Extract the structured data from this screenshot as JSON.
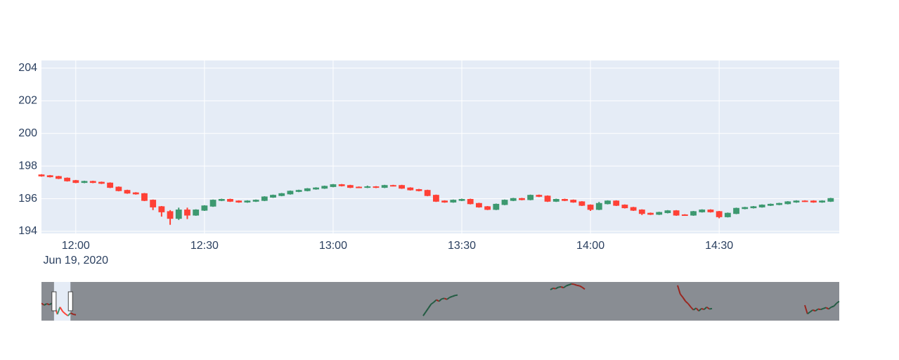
{
  "chart_data": {
    "type": "candlestick",
    "x": [
      "2020-06-19 11:52",
      "2020-06-19 11:54",
      "2020-06-19 11:56",
      "2020-06-19 11:58",
      "2020-06-19 12:00",
      "2020-06-19 12:02",
      "2020-06-19 12:04",
      "2020-06-19 12:06",
      "2020-06-19 12:08",
      "2020-06-19 12:10",
      "2020-06-19 12:12",
      "2020-06-19 12:14",
      "2020-06-19 12:16",
      "2020-06-19 12:18",
      "2020-06-19 12:20",
      "2020-06-19 12:22",
      "2020-06-19 12:24",
      "2020-06-19 12:26",
      "2020-06-19 12:28",
      "2020-06-19 12:30",
      "2020-06-19 12:32",
      "2020-06-19 12:34",
      "2020-06-19 12:36",
      "2020-06-19 12:38",
      "2020-06-19 12:40",
      "2020-06-19 12:42",
      "2020-06-19 12:44",
      "2020-06-19 12:46",
      "2020-06-19 12:48",
      "2020-06-19 12:50",
      "2020-06-19 12:52",
      "2020-06-19 12:54",
      "2020-06-19 12:56",
      "2020-06-19 12:58",
      "2020-06-19 13:00",
      "2020-06-19 13:02",
      "2020-06-19 13:04",
      "2020-06-19 13:06",
      "2020-06-19 13:08",
      "2020-06-19 13:10",
      "2020-06-19 13:12",
      "2020-06-19 13:14",
      "2020-06-19 13:16",
      "2020-06-19 13:18",
      "2020-06-19 13:20",
      "2020-06-19 13:22",
      "2020-06-19 13:24",
      "2020-06-19 13:26",
      "2020-06-19 13:28",
      "2020-06-19 13:30",
      "2020-06-19 13:32",
      "2020-06-19 13:34",
      "2020-06-19 13:36",
      "2020-06-19 13:38",
      "2020-06-19 13:40",
      "2020-06-19 13:42",
      "2020-06-19 13:44",
      "2020-06-19 13:46",
      "2020-06-19 13:48",
      "2020-06-19 13:50",
      "2020-06-19 13:52",
      "2020-06-19 13:54",
      "2020-06-19 13:56",
      "2020-06-19 13:58",
      "2020-06-19 14:00",
      "2020-06-19 14:02",
      "2020-06-19 14:04",
      "2020-06-19 14:06",
      "2020-06-19 14:08",
      "2020-06-19 14:10",
      "2020-06-19 14:12",
      "2020-06-19 14:14",
      "2020-06-19 14:16",
      "2020-06-19 14:18",
      "2020-06-19 14:20",
      "2020-06-19 14:22",
      "2020-06-19 14:24",
      "2020-06-19 14:26",
      "2020-06-19 14:28",
      "2020-06-19 14:30",
      "2020-06-19 14:32",
      "2020-06-19 14:34",
      "2020-06-19 14:36",
      "2020-06-19 14:38",
      "2020-06-19 14:40",
      "2020-06-19 14:42",
      "2020-06-19 14:44",
      "2020-06-19 14:46",
      "2020-06-19 14:48",
      "2020-06-19 14:50",
      "2020-06-19 14:52",
      "2020-06-19 14:54",
      "2020-06-19 14:56"
    ],
    "open": [
      197.45,
      197.4,
      197.35,
      197.25,
      197.1,
      197.0,
      197.05,
      197.0,
      196.95,
      196.7,
      196.5,
      196.35,
      196.3,
      195.9,
      195.5,
      195.2,
      194.8,
      195.3,
      195.0,
      195.3,
      195.55,
      195.9,
      195.95,
      195.85,
      195.8,
      195.85,
      195.9,
      196.1,
      196.2,
      196.3,
      196.45,
      196.5,
      196.6,
      196.65,
      196.75,
      196.85,
      196.8,
      196.7,
      196.7,
      196.72,
      196.7,
      196.8,
      196.8,
      196.65,
      196.55,
      196.5,
      196.2,
      195.85,
      195.8,
      195.9,
      195.95,
      195.7,
      195.5,
      195.35,
      195.65,
      195.9,
      196.0,
      195.95,
      196.2,
      196.15,
      195.85,
      195.95,
      195.9,
      195.8,
      195.6,
      195.35,
      195.7,
      195.85,
      195.6,
      195.45,
      195.3,
      195.1,
      195.05,
      195.15,
      195.25,
      195.0,
      195.0,
      195.2,
      195.3,
      195.2,
      194.9,
      195.1,
      195.4,
      195.45,
      195.5,
      195.6,
      195.65,
      195.7,
      195.8,
      195.85,
      195.85,
      195.8,
      195.85
    ],
    "high": [
      197.5,
      197.45,
      197.4,
      197.3,
      197.15,
      197.1,
      197.1,
      197.05,
      197.0,
      196.75,
      196.55,
      196.4,
      196.35,
      195.95,
      195.55,
      195.3,
      195.45,
      195.45,
      195.35,
      195.6,
      195.95,
      196.0,
      196.0,
      195.9,
      195.9,
      195.95,
      196.15,
      196.25,
      196.35,
      196.5,
      196.55,
      196.65,
      196.7,
      196.8,
      196.9,
      196.9,
      196.85,
      196.75,
      196.8,
      196.77,
      196.85,
      196.85,
      196.85,
      196.7,
      196.6,
      196.55,
      196.25,
      195.9,
      195.95,
      196.0,
      196.0,
      195.75,
      195.55,
      195.7,
      195.95,
      196.05,
      196.05,
      196.25,
      196.25,
      196.2,
      196.0,
      196.0,
      195.95,
      195.85,
      195.65,
      195.8,
      195.9,
      195.9,
      195.65,
      195.5,
      195.35,
      195.15,
      195.2,
      195.3,
      195.3,
      195.05,
      195.25,
      195.35,
      195.35,
      195.25,
      195.15,
      195.45,
      195.5,
      195.55,
      195.65,
      195.7,
      195.75,
      195.85,
      195.9,
      195.9,
      195.9,
      195.9,
      196.05
    ],
    "low": [
      197.35,
      197.3,
      197.2,
      197.05,
      196.95,
      196.95,
      196.95,
      196.9,
      196.65,
      196.45,
      196.3,
      196.25,
      195.85,
      195.3,
      194.9,
      194.4,
      194.7,
      194.75,
      194.95,
      195.25,
      195.5,
      195.85,
      195.8,
      195.75,
      195.75,
      195.8,
      195.85,
      196.05,
      196.15,
      196.25,
      196.4,
      196.45,
      196.55,
      196.6,
      196.7,
      196.75,
      196.65,
      196.65,
      196.65,
      196.65,
      196.65,
      196.75,
      196.6,
      196.5,
      196.45,
      196.15,
      195.8,
      195.75,
      195.75,
      195.85,
      195.65,
      195.45,
      195.3,
      195.3,
      195.6,
      195.85,
      195.9,
      195.9,
      196.1,
      195.8,
      195.8,
      195.85,
      195.75,
      195.55,
      195.25,
      195.3,
      195.65,
      195.55,
      195.4,
      195.25,
      195.0,
      195.0,
      195.0,
      195.1,
      194.95,
      194.95,
      194.95,
      195.15,
      195.15,
      194.8,
      194.85,
      195.05,
      195.35,
      195.4,
      195.45,
      195.55,
      195.6,
      195.65,
      195.75,
      195.8,
      195.75,
      195.75,
      195.8
    ],
    "close": [
      197.4,
      197.35,
      197.25,
      197.1,
      197.0,
      197.05,
      197.0,
      196.95,
      196.7,
      196.5,
      196.35,
      196.3,
      195.9,
      195.5,
      195.2,
      194.8,
      195.3,
      195.0,
      195.3,
      195.55,
      195.9,
      195.95,
      195.85,
      195.8,
      195.85,
      195.9,
      196.1,
      196.2,
      196.3,
      196.45,
      196.5,
      196.6,
      196.65,
      196.75,
      196.85,
      196.8,
      196.7,
      196.7,
      196.72,
      196.7,
      196.8,
      196.8,
      196.65,
      196.55,
      196.5,
      196.2,
      195.85,
      195.8,
      195.9,
      195.95,
      195.7,
      195.5,
      195.35,
      195.65,
      195.9,
      196.0,
      195.95,
      196.2,
      196.15,
      195.85,
      195.95,
      195.9,
      195.8,
      195.6,
      195.35,
      195.7,
      195.85,
      195.6,
      195.45,
      195.3,
      195.1,
      195.05,
      195.15,
      195.25,
      195.0,
      195.0,
      195.2,
      195.3,
      195.2,
      194.9,
      195.1,
      195.4,
      195.45,
      195.5,
      195.6,
      195.65,
      195.7,
      195.8,
      195.85,
      195.85,
      195.8,
      195.85,
      196.0
    ],
    "increasing_color": "#3D9970",
    "decreasing_color": "#FF4136",
    "xlim": [
      "2020-06-19 11:52",
      "2020-06-19 14:58"
    ],
    "ylim": [
      193.87,
      204.47
    ],
    "yticks": [
      194,
      196,
      198,
      200,
      202,
      204
    ],
    "xticks": [
      {
        "value": "2020-06-19 12:00",
        "label": "12:00"
      },
      {
        "value": "2020-06-19 12:30",
        "label": "12:30"
      },
      {
        "value": "2020-06-19 13:00",
        "label": "13:00"
      },
      {
        "value": "2020-06-19 13:30",
        "label": "13:30"
      },
      {
        "value": "2020-06-19 14:00",
        "label": "14:00"
      },
      {
        "value": "2020-06-19 14:30",
        "label": "14:30"
      }
    ],
    "x_date_label": "Jun 19, 2020",
    "grid": true,
    "rangeslider": {
      "xlim": [
        "2020-06-19 09:30",
        "2020-06-25 16:00"
      ],
      "ylim": [
        194,
        202
      ],
      "overview": [
        {
          "x": [
            "2020-06-19 09:30",
            "2020-06-19 10:00",
            "2020-06-19 10:30",
            "2020-06-19 11:00",
            "2020-06-19 11:30",
            "2020-06-19 12:00",
            "2020-06-19 12:30",
            "2020-06-19 13:00",
            "2020-06-19 13:30",
            "2020-06-19 14:00",
            "2020-06-19 14:30",
            "2020-06-19 15:00",
            "2020-06-19 15:30",
            "2020-06-19 16:00"
          ],
          "values": [
            197.6,
            197.2,
            197.5,
            197.3,
            197.6,
            197.0,
            195.3,
            196.8,
            195.9,
            195.4,
            195.0,
            195.6,
            195.3,
            195.2
          ]
        },
        {
          "x": [
            "2020-06-22 09:30",
            "2020-06-22 10:00",
            "2020-06-22 10:30",
            "2020-06-22 11:00",
            "2020-06-22 11:30",
            "2020-06-22 12:00",
            "2020-06-22 12:30",
            "2020-06-22 13:00",
            "2020-06-22 13:30",
            "2020-06-22 14:00",
            "2020-06-22 14:30",
            "2020-06-22 15:00",
            "2020-06-22 15:30",
            "2020-06-22 16:00"
          ],
          "values": [
            195.0,
            195.8,
            196.6,
            197.4,
            197.8,
            198.3,
            198.0,
            198.5,
            198.6,
            198.4,
            198.8,
            199.0,
            199.2,
            199.3
          ]
        },
        {
          "x": [
            "2020-06-23 09:30",
            "2020-06-23 10:00",
            "2020-06-23 10:30",
            "2020-06-23 11:00",
            "2020-06-23 11:30",
            "2020-06-23 12:00",
            "2020-06-23 12:30",
            "2020-06-23 13:00",
            "2020-06-23 13:30",
            "2020-06-23 14:00",
            "2020-06-23 14:30",
            "2020-06-23 15:00",
            "2020-06-23 15:30",
            "2020-06-23 16:00"
          ],
          "values": [
            200.4,
            200.7,
            200.6,
            200.9,
            201.0,
            200.8,
            201.2,
            201.4,
            201.6,
            201.5,
            201.3,
            201.2,
            200.9,
            200.5
          ]
        },
        {
          "x": [
            "2020-06-24 09:30",
            "2020-06-24 10:00",
            "2020-06-24 10:30",
            "2020-06-24 11:00",
            "2020-06-24 11:30",
            "2020-06-24 12:00",
            "2020-06-24 12:30",
            "2020-06-24 13:00",
            "2020-06-24 13:30",
            "2020-06-24 14:00",
            "2020-06-24 14:30",
            "2020-06-24 15:00",
            "2020-06-24 15:30",
            "2020-06-24 16:00"
          ],
          "values": [
            201.3,
            199.5,
            198.8,
            198.0,
            197.5,
            196.8,
            196.2,
            196.6,
            196.0,
            196.5,
            196.3,
            196.8,
            196.4,
            196.5
          ]
        },
        {
          "x": [
            "2020-06-25 09:30",
            "2020-06-25 10:00",
            "2020-06-25 10:30",
            "2020-06-25 11:00",
            "2020-06-25 11:30",
            "2020-06-25 12:00",
            "2020-06-25 12:30",
            "2020-06-25 13:00",
            "2020-06-25 13:30",
            "2020-06-25 14:00",
            "2020-06-25 14:30",
            "2020-06-25 15:00",
            "2020-06-25 15:30",
            "2020-06-25 16:00"
          ],
          "values": [
            197.2,
            195.4,
            195.8,
            196.2,
            196.0,
            196.4,
            196.3,
            196.5,
            196.7,
            196.4,
            196.8,
            197.0,
            197.6,
            198.0
          ]
        }
      ]
    }
  }
}
